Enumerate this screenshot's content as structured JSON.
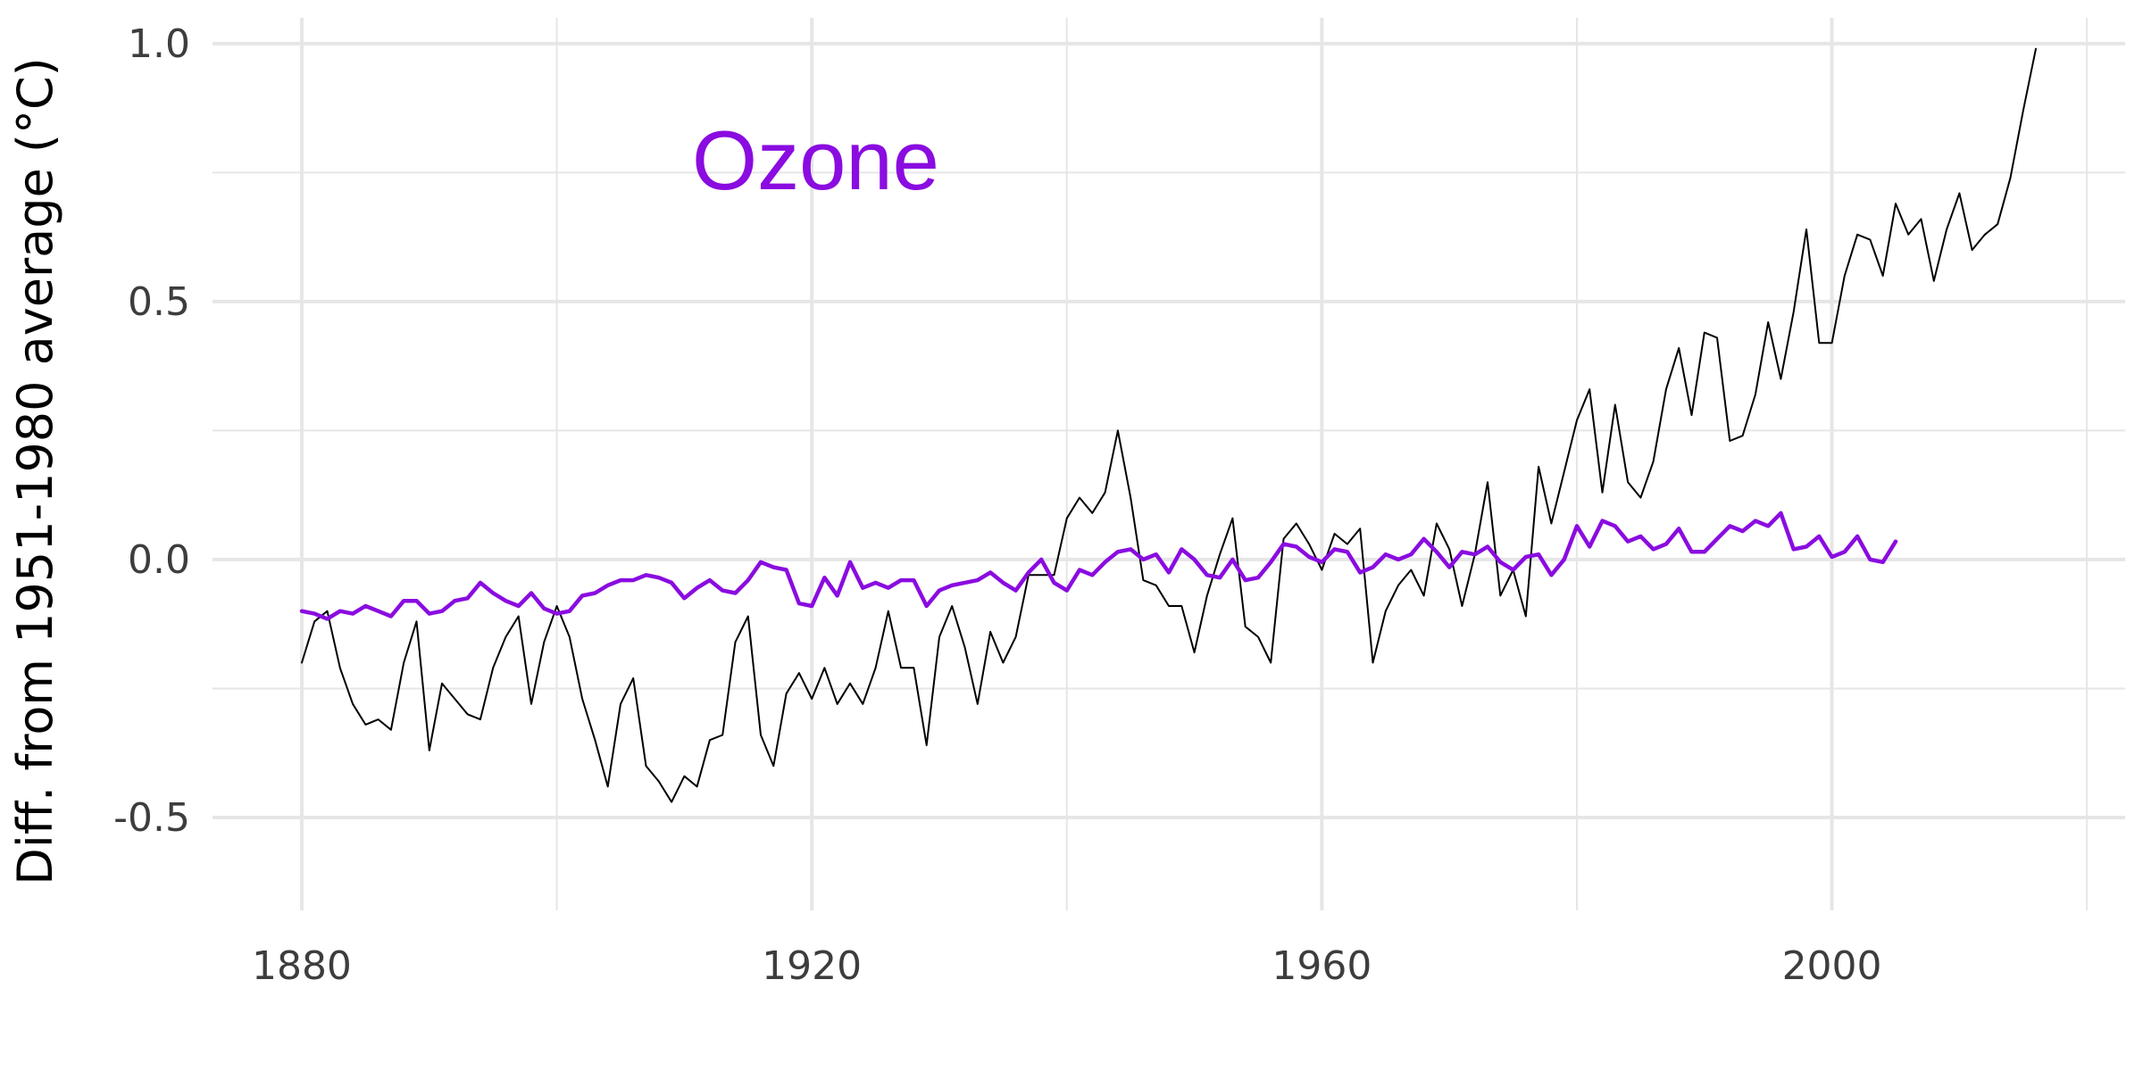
{
  "chart_data": {
    "type": "line",
    "title": "",
    "xlabel": "",
    "ylabel": "Diff. from 1951-1980 average (°C)",
    "annotation": "Ozone",
    "xlim": [
      1873,
      2023
    ],
    "ylim": [
      -0.68,
      1.05
    ],
    "x_ticks": [
      1880,
      1920,
      1960,
      2000
    ],
    "x_minor_ticks": [
      1900,
      1940,
      1980,
      2020
    ],
    "y_ticks": [
      -0.5,
      0.0,
      0.5,
      1.0
    ],
    "y_tick_labels": [
      "-0.5",
      "0.0",
      "0.5",
      "1.0"
    ],
    "y_minor_ticks": [
      -0.25,
      0.25,
      0.75
    ],
    "grid": true,
    "legend": "none",
    "colors": {
      "series_observed": "#000000",
      "series_ozone": "#8a0ce0",
      "grid": "#e6e6e6"
    },
    "series": [
      {
        "x_start": 1880,
        "values": [
          -0.2,
          -0.12,
          -0.1,
          -0.21,
          -0.28,
          -0.32,
          -0.31,
          -0.33,
          -0.2,
          -0.12,
          -0.37,
          -0.24,
          -0.27,
          -0.3,
          -0.31,
          -0.21,
          -0.15,
          -0.11,
          -0.28,
          -0.16,
          -0.09,
          -0.15,
          -0.27,
          -0.35,
          -0.44,
          -0.28,
          -0.23,
          -0.4,
          -0.43,
          -0.47,
          -0.42,
          -0.44,
          -0.35,
          -0.34,
          -0.16,
          -0.11,
          -0.34,
          -0.4,
          -0.26,
          -0.22,
          -0.27,
          -0.21,
          -0.28,
          -0.24,
          -0.28,
          -0.21,
          -0.1,
          -0.21,
          -0.21,
          -0.36,
          -0.15,
          -0.09,
          -0.17,
          -0.28,
          -0.14,
          -0.2,
          -0.15,
          -0.03,
          -0.03,
          -0.03,
          0.08,
          0.12,
          0.09,
          0.13,
          0.25,
          0.12,
          -0.04,
          -0.05,
          -0.09,
          -0.09,
          -0.18,
          -0.07,
          0.01,
          0.08,
          -0.13,
          -0.15,
          -0.2,
          0.04,
          0.07,
          0.03,
          -0.02,
          0.05,
          0.03,
          0.06,
          -0.2,
          -0.1,
          -0.05,
          -0.02,
          -0.07,
          0.07,
          0.02,
          -0.09,
          0.01,
          0.15,
          -0.07,
          -0.02,
          -0.11,
          0.18,
          0.07,
          0.17,
          0.27,
          0.33,
          0.13,
          0.3,
          0.15,
          0.12,
          0.19,
          0.33,
          0.41,
          0.28,
          0.44,
          0.43,
          0.23,
          0.24,
          0.32,
          0.46,
          0.35,
          0.48,
          0.64,
          0.42,
          0.42,
          0.55,
          0.63,
          0.62,
          0.55,
          0.69,
          0.63,
          0.66,
          0.54,
          0.64,
          0.71,
          0.6,
          0.63,
          0.65,
          0.74,
          0.87,
          0.99
        ]
      },
      {
        "x_start": 1880,
        "values": [
          -0.1,
          -0.105,
          -0.115,
          -0.1,
          -0.105,
          -0.09,
          -0.1,
          -0.11,
          -0.08,
          -0.08,
          -0.105,
          -0.1,
          -0.08,
          -0.075,
          -0.045,
          -0.065,
          -0.08,
          -0.09,
          -0.065,
          -0.095,
          -0.105,
          -0.1,
          -0.07,
          -0.065,
          -0.05,
          -0.04,
          -0.04,
          -0.03,
          -0.035,
          -0.045,
          -0.075,
          -0.055,
          -0.04,
          -0.06,
          -0.065,
          -0.04,
          -0.005,
          -0.015,
          -0.02,
          -0.085,
          -0.09,
          -0.035,
          -0.07,
          -0.005,
          -0.055,
          -0.045,
          -0.055,
          -0.04,
          -0.04,
          -0.09,
          -0.06,
          -0.05,
          -0.045,
          -0.04,
          -0.025,
          -0.045,
          -0.06,
          -0.025,
          0.0,
          -0.045,
          -0.06,
          -0.02,
          -0.03,
          -0.005,
          0.015,
          0.02,
          0.0,
          0.01,
          -0.025,
          0.02,
          0.0,
          -0.03,
          -0.035,
          0.0,
          -0.04,
          -0.035,
          -0.005,
          0.03,
          0.025,
          0.005,
          -0.005,
          0.02,
          0.015,
          -0.025,
          -0.015,
          0.01,
          0.0,
          0.01,
          0.04,
          0.015,
          -0.015,
          0.015,
          0.01,
          0.025,
          -0.005,
          -0.02,
          0.005,
          0.01,
          -0.03,
          0.0,
          0.065,
          0.025,
          0.075,
          0.065,
          0.035,
          0.045,
          0.02,
          0.03,
          0.06,
          0.015,
          0.015,
          0.04,
          0.065,
          0.055,
          0.075,
          0.065,
          0.09,
          0.02,
          0.025,
          0.045,
          0.005,
          0.015,
          0.045,
          0.0,
          -0.005,
          0.035
        ]
      }
    ]
  }
}
